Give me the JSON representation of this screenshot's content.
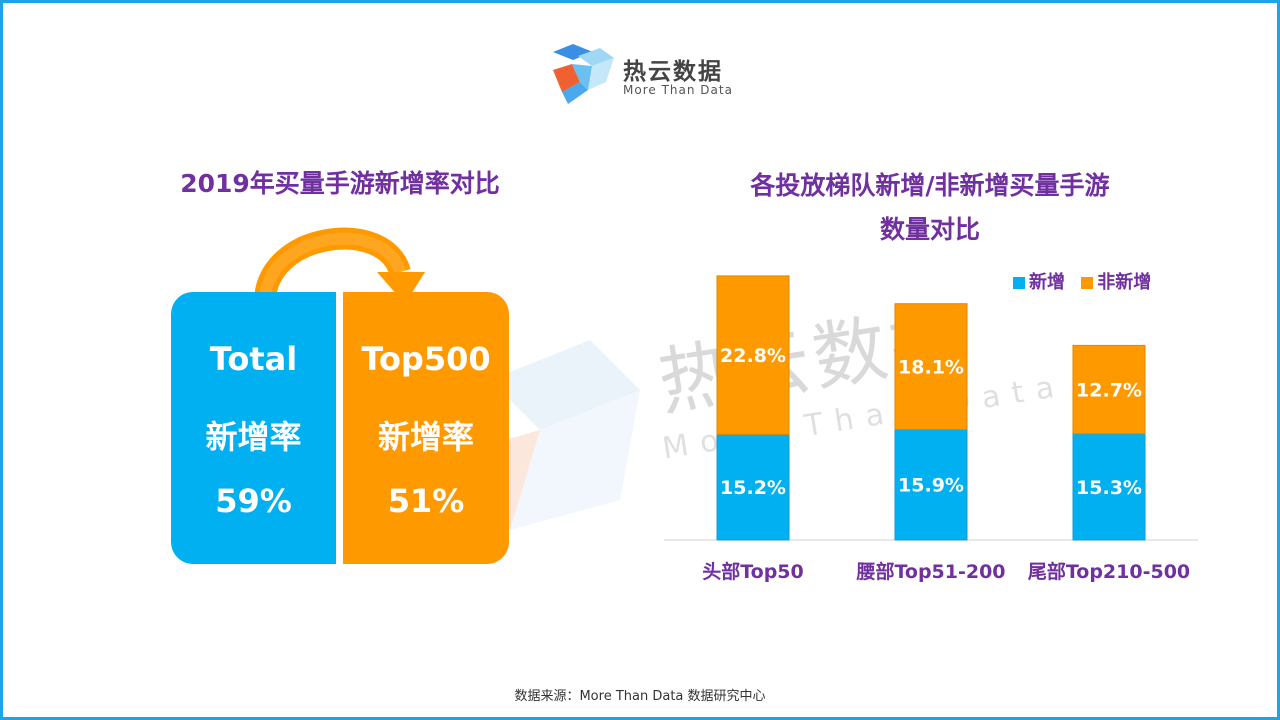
{
  "logo": {
    "cn": "热云数据",
    "en": "More Than Data"
  },
  "watermark": {
    "cn": "热云数据",
    "en": "More Than Data"
  },
  "left_panel": {
    "title": "2019年买量手游新增率对比",
    "cards": [
      {
        "line1": "Total",
        "line2": "新增率",
        "value": "59%",
        "color": "#00b0f0"
      },
      {
        "line1": "Top500",
        "line2": "新增率",
        "value": "51%",
        "color": "#ff9900"
      }
    ]
  },
  "right_panel": {
    "title_line1": "各投放梯队新增/非新增买量手游",
    "title_line2": "数量对比"
  },
  "chart_data": {
    "type": "bar",
    "stacked": true,
    "categories": [
      "头部Top50",
      "腰部Top51-200",
      "尾部Top210-500"
    ],
    "series": [
      {
        "name": "新增",
        "values": [
          15.2,
          15.9,
          15.3
        ],
        "labels": [
          "15.2%",
          "15.9%",
          "15.3%"
        ],
        "color": "#00b0f0"
      },
      {
        "name": "非新增",
        "values": [
          22.8,
          18.1,
          12.7
        ],
        "labels": [
          "22.8%",
          "18.1%",
          "12.7%"
        ],
        "color": "#ff9900"
      }
    ],
    "legend": "top-right",
    "grid": false,
    "ylim": [
      0,
      40
    ]
  },
  "source": "数据来源：More  Than  Data  数据研究中心"
}
